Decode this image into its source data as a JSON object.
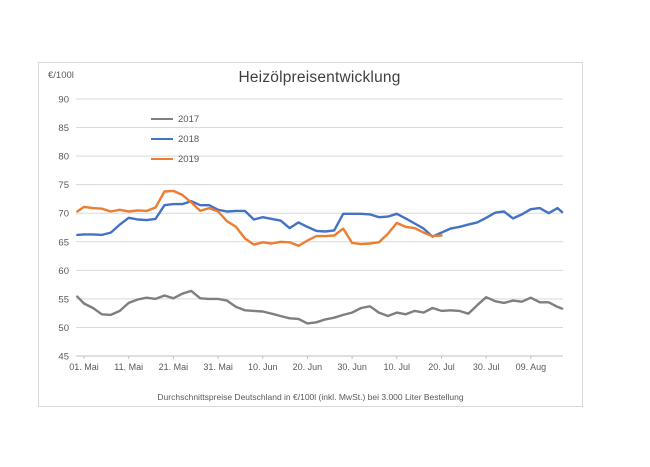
{
  "chart": {
    "title": "Heizölpreisentwicklung",
    "y_axis_unit_label": "€/100l",
    "caption": "Durchschnittspreise Deutschland in €/100l (inkl. MwSt.) bei 3.000 Liter Bestellung"
  },
  "colors": {
    "background": "#ffffff",
    "card_border": "#d9d9d9",
    "gridline": "#d9d9d9",
    "axis_line": "#bfbfbf",
    "title_text": "#404040",
    "axis_text": "#595959"
  },
  "chart_data": {
    "type": "line",
    "title": "Heizölpreisentwicklung",
    "ylabel": "€/100l",
    "xlabel": "",
    "ylim": [
      45,
      90
    ],
    "yticks": [
      45,
      50,
      55,
      60,
      65,
      70,
      75,
      80,
      85,
      90
    ],
    "grid": "horizontal",
    "legend_position": "inside-top-left",
    "x_unit": "days since 01. Mai",
    "xticks": [
      0,
      10,
      20,
      30,
      40,
      50,
      60,
      70,
      80,
      90,
      100
    ],
    "xtick_labels": [
      "01. Mai",
      "11. Mai",
      "21. Mai",
      "31. Mai",
      "10. Jun",
      "20. Jun",
      "30. Jun",
      "10. Jul",
      "20. Jul",
      "30. Jul",
      "09. Aug"
    ],
    "caption": "Durchschnittspreise Deutschland in €/100l (inkl. MwSt.) bei 3.000 Liter Bestellung",
    "series": [
      {
        "name": "2017",
        "color": "#7f7f7f",
        "x": [
          -1.5,
          0,
          2,
          4,
          6,
          8,
          10,
          12,
          14,
          16,
          18,
          20,
          22,
          24,
          26,
          28,
          30,
          32,
          34,
          36,
          38,
          40,
          42,
          44,
          46,
          48,
          50,
          52,
          54,
          56,
          58,
          60,
          62,
          64,
          66,
          68,
          70,
          72,
          74,
          76,
          78,
          80,
          82,
          84,
          86,
          88,
          90,
          92,
          94,
          96,
          98,
          100,
          102,
          104,
          106,
          107
        ],
        "values": [
          55.4,
          54.2,
          53.4,
          52.3,
          52.2,
          52.9,
          54.3,
          54.9,
          55.2,
          55.0,
          55.6,
          55.1,
          55.9,
          56.4,
          55.1,
          55.0,
          55.0,
          54.7,
          53.6,
          53.0,
          52.9,
          52.8,
          52.4,
          52.0,
          51.6,
          51.5,
          50.7,
          50.9,
          51.4,
          51.7,
          52.2,
          52.6,
          53.4,
          53.7,
          52.6,
          52.0,
          52.6,
          52.3,
          52.9,
          52.6,
          53.4,
          52.9,
          53.0,
          52.9,
          52.4,
          53.9,
          55.3,
          54.6,
          54.3,
          54.7,
          54.5,
          55.2,
          54.4,
          54.4,
          53.6,
          53.3
        ]
      },
      {
        "name": "2018",
        "color": "#4472c4",
        "x": [
          -1.5,
          0,
          2,
          4,
          6,
          8,
          10,
          12,
          14,
          16,
          18,
          20,
          22,
          24,
          26,
          28,
          30,
          32,
          34,
          36,
          38,
          40,
          42,
          44,
          46,
          48,
          50,
          52,
          54,
          56,
          58,
          60,
          62,
          64,
          66,
          68,
          70,
          72,
          74,
          76,
          78,
          80,
          82,
          84,
          86,
          88,
          90,
          92,
          94,
          96,
          98,
          100,
          102,
          104,
          106,
          107
        ],
        "values": [
          66.2,
          66.3,
          66.3,
          66.2,
          66.6,
          68.0,
          69.2,
          68.9,
          68.8,
          69.0,
          71.4,
          71.6,
          71.6,
          72.1,
          71.4,
          71.4,
          70.6,
          70.3,
          70.4,
          70.4,
          68.9,
          69.3,
          69.0,
          68.7,
          67.4,
          68.4,
          67.6,
          66.9,
          66.8,
          67.0,
          69.9,
          69.9,
          69.9,
          69.8,
          69.3,
          69.4,
          69.9,
          69.1,
          68.2,
          67.3,
          65.9,
          66.6,
          67.3,
          67.6,
          68.0,
          68.4,
          69.2,
          70.1,
          70.3,
          69.1,
          69.8,
          70.7,
          70.9,
          70.0,
          70.9,
          70.2
        ]
      },
      {
        "name": "2019",
        "color": "#ed7d31",
        "x": [
          -1.5,
          0,
          2,
          4,
          6,
          8,
          10,
          12,
          14,
          16,
          18,
          20,
          22,
          24,
          26,
          28,
          30,
          32,
          34,
          36,
          38,
          40,
          42,
          44,
          46,
          48,
          50,
          52,
          54,
          56,
          58,
          60,
          62,
          64,
          66,
          68,
          70,
          72,
          74,
          76,
          78,
          80
        ],
        "values": [
          70.3,
          71.1,
          70.9,
          70.8,
          70.3,
          70.6,
          70.3,
          70.5,
          70.4,
          71.0,
          73.8,
          73.9,
          73.2,
          71.9,
          70.4,
          70.9,
          70.3,
          68.6,
          67.6,
          65.6,
          64.5,
          64.9,
          64.7,
          65.0,
          64.9,
          64.3,
          65.2,
          66.0,
          66.0,
          66.1,
          67.3,
          64.8,
          64.6,
          64.7,
          64.9,
          66.4,
          68.3,
          67.6,
          67.4,
          66.6,
          66.0,
          66.1
        ]
      }
    ]
  }
}
